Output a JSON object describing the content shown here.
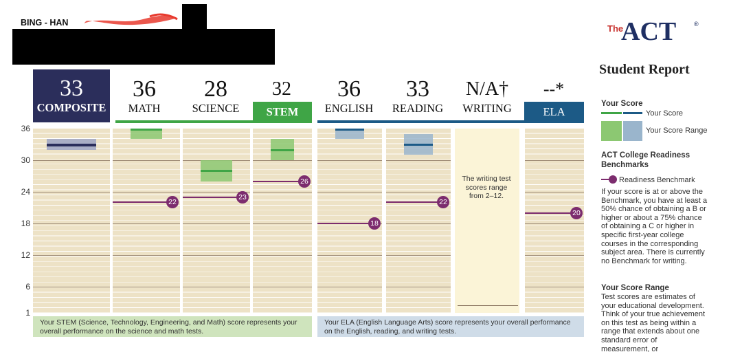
{
  "header": {
    "student_name": "BING - HAN",
    "logo_the": "The",
    "logo_act": "ACT",
    "logo_reg": "®",
    "report_title": "Student Report"
  },
  "scores": {
    "composite": {
      "value": "33",
      "label": "COMPOSITE"
    },
    "math": {
      "value": "36",
      "label": "MATH"
    },
    "science": {
      "value": "28",
      "label": "SCIENCE"
    },
    "stem": {
      "value": "32",
      "label": "STEM"
    },
    "english": {
      "value": "36",
      "label": "ENGLISH"
    },
    "reading": {
      "value": "33",
      "label": "READING"
    },
    "writing": {
      "value": "N/A†",
      "label": "WRITING"
    },
    "ela": {
      "value": "--*",
      "label": "ELA"
    }
  },
  "chart_data": {
    "type": "bar",
    "categories": [
      "COMPOSITE",
      "MATH",
      "SCIENCE",
      "STEM",
      "ENGLISH",
      "READING",
      "WRITING",
      "ELA"
    ],
    "scores": [
      33,
      36,
      28,
      32,
      36,
      33,
      null,
      null
    ],
    "score_ranges": [
      [
        32,
        34
      ],
      [
        34,
        36
      ],
      [
        26,
        30
      ],
      [
        30,
        34
      ],
      [
        34,
        36
      ],
      [
        31,
        35
      ],
      null,
      null
    ],
    "benchmarks": [
      null,
      22,
      23,
      26,
      18,
      22,
      null,
      20
    ],
    "y_ticks": [
      "36",
      "30",
      "24",
      "18",
      "12",
      "6",
      "1"
    ],
    "ylim": [
      1,
      36
    ]
  },
  "colors": {
    "composite": "#2b2e5b",
    "stem_green": "#3fa546",
    "ela_blue": "#1c5a86",
    "green_range": "#8cc872",
    "blue_range": "#9ab5cc",
    "benchmark": "#7c2c6e"
  },
  "writing_note": "The writing test scores range from 2–12.",
  "footer": {
    "stem": "Your STEM (Science, Technology, Engineering, and Math) score represents your overall performance on the science and math tests.",
    "ela": "Your ELA (English Language Arts) score represents your overall performance on the English, reading, and writing tests."
  },
  "legend": {
    "your_score_heading": "Your Score",
    "your_score": "Your Score",
    "your_score_range": "Your Score Range",
    "benchmarks_heading": "ACT College Readiness Benchmarks",
    "readiness_benchmark": "Readiness Benchmark",
    "benchmark_text": "If your score is at or above the Benchmark, you have at least a 50% chance of obtaining a B or higher or about a 75% chance of obtaining a C or higher in specific first-year college courses in the corresponding subject area. There is currently no Benchmark for writing.",
    "range_heading": "Your Score Range",
    "range_text": "Test scores are estimates of your educational development. Think of your true achievement on this test as being within a range that extends about one standard error of measurement, or"
  }
}
